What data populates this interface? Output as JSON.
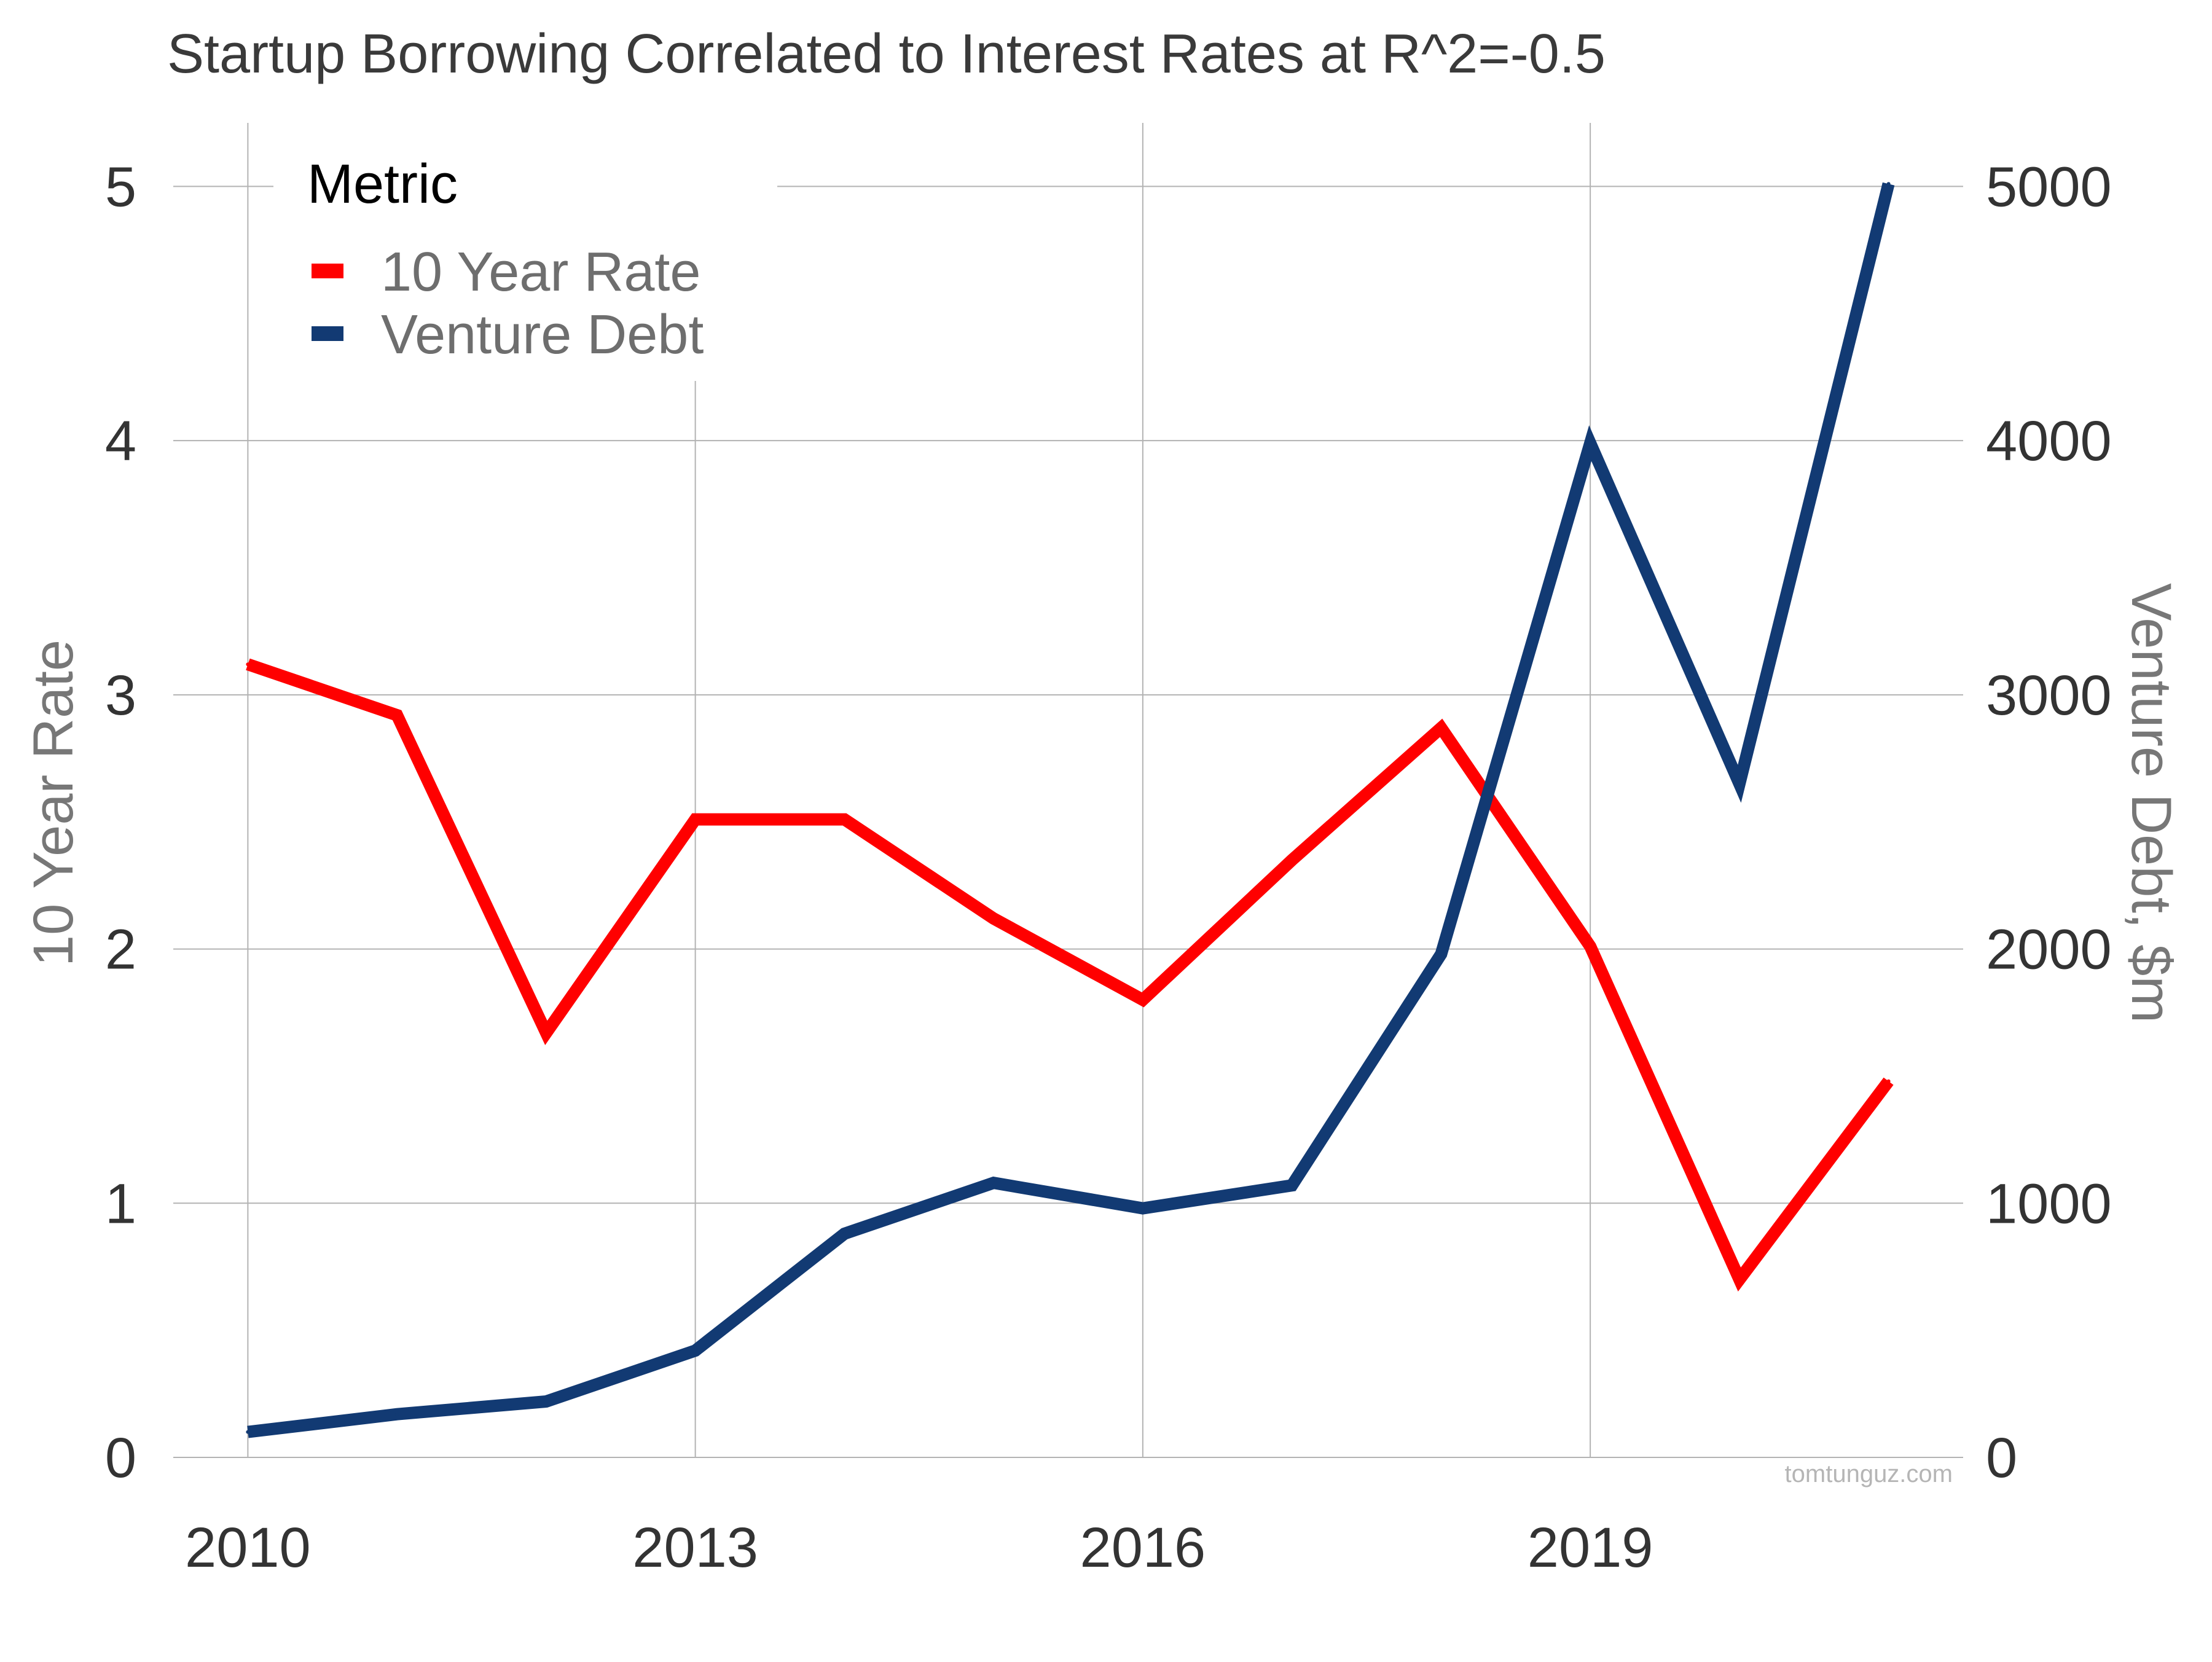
{
  "chart_data": {
    "type": "line",
    "title": "Startup Borrowing Correlated to Interest Rates at R^2=-0.5",
    "x": [
      2010,
      2011,
      2012,
      2013,
      2014,
      2015,
      2016,
      2017,
      2018,
      2019,
      2020,
      2021
    ],
    "x_ticks": [
      "2010",
      "2013",
      "2016",
      "2019"
    ],
    "xlim": [
      2009.5,
      2021.5
    ],
    "ylabel_left": "10 Year Rate",
    "ylabel_right": "Venture Debt, $m",
    "ylim_left": [
      0,
      5.25
    ],
    "ylim_right": [
      0,
      5250
    ],
    "y_ticks_left": [
      "0",
      "1",
      "2",
      "3",
      "4",
      "5"
    ],
    "y_ticks_right": [
      "0",
      "1000",
      "2000",
      "3000",
      "4000",
      "5000"
    ],
    "grid": true,
    "legend": {
      "title": "Metric",
      "position": "top-left"
    },
    "series": [
      {
        "name": "10 Year Rate",
        "axis": "left",
        "color": "#ff0000",
        "values": [
          3.12,
          2.92,
          1.67,
          2.51,
          2.51,
          2.12,
          1.8,
          2.35,
          2.87,
          2.01,
          0.7,
          1.48
        ]
      },
      {
        "name": "Venture Debt",
        "axis": "right",
        "color": "#123a73",
        "values": [
          100,
          170,
          220,
          420,
          880,
          1080,
          980,
          1070,
          1980,
          3990,
          2650,
          5010
        ]
      }
    ],
    "watermark": "tomtunguz.com"
  }
}
